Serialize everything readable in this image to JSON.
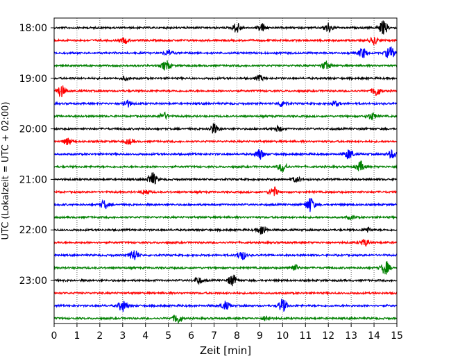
{
  "chart_data": {
    "type": "line",
    "subtype": "helicorder",
    "xlabel": "Zeit  [min]",
    "ylabel": "UTC (Lokalzeit = UTC + 02:00)",
    "xlim": [
      0,
      15
    ],
    "x_ticks": [
      "0",
      "1",
      "2",
      "3",
      "4",
      "5",
      "6",
      "7",
      "8",
      "9",
      "10",
      "11",
      "12",
      "13",
      "14",
      "15"
    ],
    "y_tick_labels": [
      "18:00",
      "19:00",
      "20:00",
      "21:00",
      "22:00",
      "23:00"
    ],
    "grid": "vertical dotted at each minute",
    "trace_colors": [
      "#000000",
      "#ff0000",
      "#0000ff",
      "#008000"
    ],
    "trace_interval_min": 15,
    "traces": [
      {
        "start": "18:00",
        "color": "#000000",
        "events": [
          [
            8.0,
            0.6
          ],
          [
            9.1,
            0.5
          ],
          [
            12.0,
            0.6
          ],
          [
            14.4,
            0.8
          ]
        ]
      },
      {
        "start": "18:15",
        "color": "#ff0000",
        "events": [
          [
            3.1,
            0.3
          ],
          [
            14.0,
            0.4
          ]
        ]
      },
      {
        "start": "18:30",
        "color": "#0000ff",
        "events": [
          [
            5.0,
            0.3
          ],
          [
            13.5,
            0.6
          ],
          [
            14.7,
            0.8
          ]
        ]
      },
      {
        "start": "18:45",
        "color": "#008000",
        "events": [
          [
            4.9,
            0.6
          ],
          [
            11.9,
            0.5
          ]
        ]
      },
      {
        "start": "19:00",
        "color": "#000000",
        "events": [
          [
            3.1,
            0.2
          ],
          [
            9.0,
            0.3
          ]
        ]
      },
      {
        "start": "19:15",
        "color": "#ff0000",
        "events": [
          [
            0.3,
            0.7
          ],
          [
            14.1,
            0.6
          ]
        ]
      },
      {
        "start": "19:30",
        "color": "#0000ff",
        "events": [
          [
            3.2,
            0.4
          ],
          [
            10.0,
            0.4
          ],
          [
            12.3,
            0.3
          ]
        ]
      },
      {
        "start": "19:45",
        "color": "#008000",
        "events": [
          [
            4.8,
            0.4
          ],
          [
            13.9,
            0.4
          ]
        ]
      },
      {
        "start": "20:00",
        "color": "#000000",
        "events": [
          [
            7.0,
            0.6
          ],
          [
            9.8,
            0.3
          ]
        ]
      },
      {
        "start": "20:15",
        "color": "#ff0000",
        "events": [
          [
            0.6,
            0.4
          ],
          [
            3.3,
            0.3
          ]
        ]
      },
      {
        "start": "20:30",
        "color": "#0000ff",
        "events": [
          [
            9.0,
            0.6
          ],
          [
            12.9,
            0.6
          ],
          [
            14.8,
            0.5
          ]
        ]
      },
      {
        "start": "20:45",
        "color": "#008000",
        "events": [
          [
            10.0,
            0.6
          ],
          [
            13.4,
            0.6
          ]
        ]
      },
      {
        "start": "21:00",
        "color": "#000000",
        "events": [
          [
            4.3,
            0.8
          ],
          [
            10.6,
            0.3
          ]
        ]
      },
      {
        "start": "21:15",
        "color": "#ff0000",
        "events": [
          [
            4.0,
            0.3
          ],
          [
            9.6,
            0.6
          ]
        ]
      },
      {
        "start": "21:30",
        "color": "#0000ff",
        "events": [
          [
            2.2,
            0.5
          ],
          [
            11.2,
            0.9
          ]
        ]
      },
      {
        "start": "21:45",
        "color": "#008000",
        "events": [
          [
            13.0,
            0.2
          ]
        ]
      },
      {
        "start": "22:00",
        "color": "#000000",
        "events": [
          [
            9.1,
            0.6
          ],
          [
            13.7,
            0.3
          ]
        ]
      },
      {
        "start": "22:15",
        "color": "#ff0000",
        "events": [
          [
            13.6,
            0.4
          ]
        ]
      },
      {
        "start": "22:30",
        "color": "#0000ff",
        "events": [
          [
            3.5,
            0.7
          ],
          [
            8.2,
            0.6
          ]
        ]
      },
      {
        "start": "22:45",
        "color": "#008000",
        "events": [
          [
            10.5,
            0.4
          ],
          [
            14.5,
            0.8
          ]
        ]
      },
      {
        "start": "23:00",
        "color": "#000000",
        "events": [
          [
            6.3,
            0.4
          ],
          [
            7.8,
            0.7
          ]
        ]
      },
      {
        "start": "23:15",
        "color": "#ff0000",
        "events": []
      },
      {
        "start": "23:30",
        "color": "#0000ff",
        "events": [
          [
            3.0,
            0.7
          ],
          [
            7.5,
            0.5
          ],
          [
            10.0,
            0.8
          ]
        ]
      },
      {
        "start": "23:45",
        "color": "#008000",
        "events": [
          [
            5.4,
            0.6
          ],
          [
            9.3,
            0.3
          ]
        ]
      }
    ]
  }
}
